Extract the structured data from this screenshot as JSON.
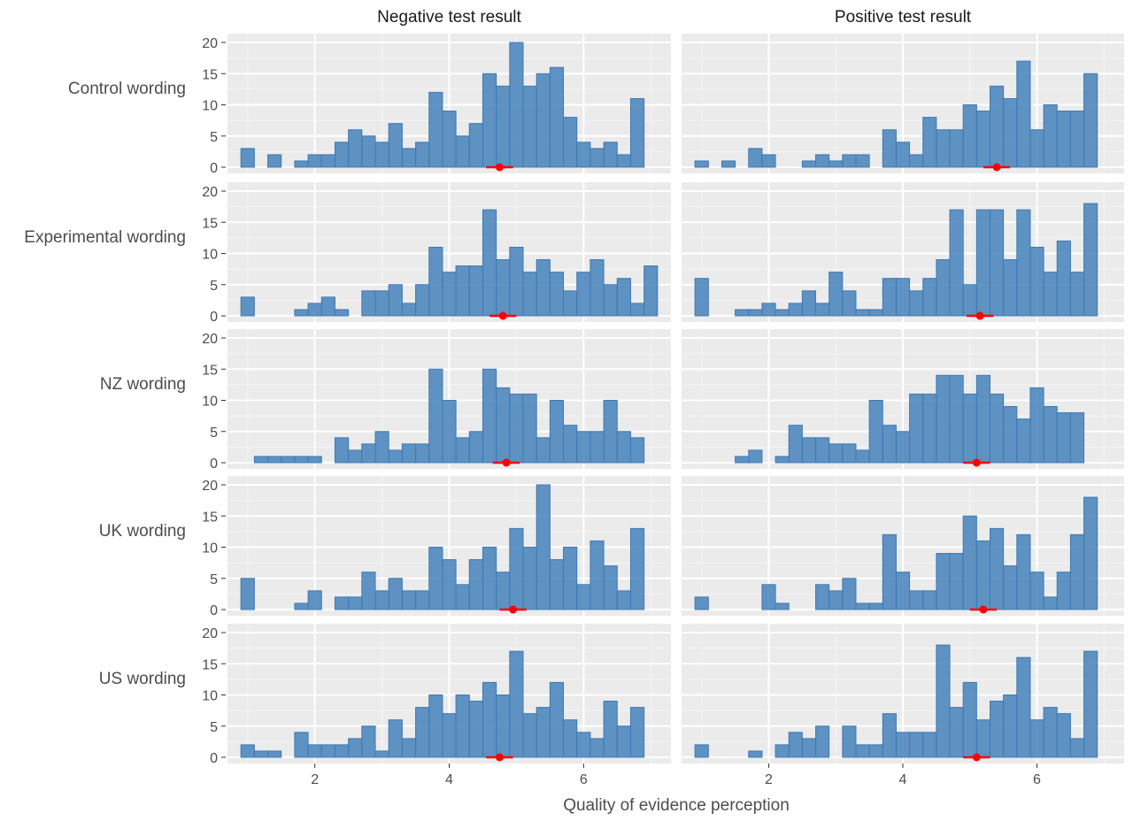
{
  "chart_data": {
    "type": "bar",
    "subtype": "faceted histogram",
    "xlabel": "Quality of evidence perception",
    "ylabel": "",
    "x_ticks": [
      2,
      4,
      6
    ],
    "y_ticks": [
      0,
      5,
      10,
      15,
      20
    ],
    "xlim": [
      0.7,
      7.3
    ],
    "ylim": [
      0,
      20.8
    ],
    "bin_start": 1.0,
    "bin_width": 0.2,
    "bar_color": "#4F88BE",
    "marker_color": "#FF0000",
    "columns": [
      "Negative test result",
      "Positive test result"
    ],
    "rows": [
      "Control wording",
      "Experimental wording",
      "NZ wording",
      "UK wording",
      "US wording"
    ],
    "panels": [
      {
        "row": "Control wording",
        "column": "Negative test result",
        "counts": [
          3,
          0,
          2,
          0,
          1,
          2,
          2,
          4,
          6,
          5,
          4,
          7,
          3,
          4,
          12,
          9,
          5,
          7,
          15,
          13,
          20,
          13,
          15,
          16,
          8,
          4,
          3,
          4,
          2,
          11
        ],
        "mean": 4.75,
        "ci": [
          4.55,
          4.95
        ]
      },
      {
        "row": "Control wording",
        "column": "Positive test result",
        "counts": [
          1,
          0,
          1,
          0,
          3,
          2,
          0,
          0,
          1,
          2,
          1,
          2,
          2,
          0,
          6,
          4,
          2,
          8,
          6,
          6,
          10,
          9,
          13,
          11,
          17,
          6,
          10,
          9,
          9,
          15
        ],
        "mean": 5.4,
        "ci": [
          5.2,
          5.6
        ]
      },
      {
        "row": "Experimental wording",
        "column": "Negative test result",
        "counts": [
          3,
          0,
          0,
          0,
          1,
          2,
          3,
          1,
          0,
          4,
          4,
          5,
          2,
          5,
          11,
          7,
          8,
          8,
          17,
          9,
          11,
          7,
          9,
          7,
          4,
          7,
          9,
          5,
          6,
          2,
          8
        ],
        "mean": 4.8,
        "ci": [
          4.6,
          5.0
        ]
      },
      {
        "row": "Experimental wording",
        "column": "Positive test result",
        "counts": [
          6,
          0,
          0,
          1,
          1,
          2,
          1,
          2,
          4,
          2,
          7,
          4,
          1,
          1,
          6,
          6,
          4,
          6,
          9,
          17,
          5,
          17,
          17,
          9,
          17,
          11,
          7,
          12,
          7,
          18
        ],
        "mean": 5.15,
        "ci": [
          4.95,
          5.35
        ]
      },
      {
        "row": "NZ wording",
        "column": "Negative test result",
        "counts": [
          0,
          1,
          1,
          1,
          1,
          1,
          0,
          4,
          2,
          3,
          5,
          2,
          3,
          3,
          15,
          10,
          4,
          5,
          15,
          12,
          11,
          11,
          4,
          10,
          6,
          5,
          5,
          10,
          5,
          4
        ],
        "mean": 4.85,
        "ci": [
          4.65,
          5.05
        ]
      },
      {
        "row": "NZ wording",
        "column": "Positive test result",
        "counts": [
          0,
          0,
          0,
          1,
          2,
          0,
          1,
          6,
          4,
          4,
          3,
          3,
          2,
          10,
          6,
          5,
          11,
          11,
          14,
          14,
          11,
          14,
          11,
          9,
          7,
          12,
          9,
          8,
          8
        ],
        "mean": 5.1,
        "ci": [
          4.9,
          5.3
        ]
      },
      {
        "row": "UK wording",
        "column": "Negative test result",
        "counts": [
          5,
          0,
          0,
          0,
          1,
          3,
          0,
          2,
          2,
          6,
          3,
          5,
          3,
          3,
          10,
          8,
          4,
          8,
          10,
          6,
          13,
          10,
          20,
          8,
          10,
          4,
          11,
          7,
          3,
          13
        ],
        "mean": 4.95,
        "ci": [
          4.75,
          5.15
        ]
      },
      {
        "row": "UK wording",
        "column": "Positive test result",
        "counts": [
          2,
          0,
          0,
          0,
          0,
          4,
          1,
          0,
          0,
          4,
          3,
          5,
          1,
          1,
          12,
          6,
          3,
          3,
          9,
          9,
          15,
          11,
          13,
          7,
          12,
          6,
          2,
          6,
          12,
          18
        ],
        "mean": 5.2,
        "ci": [
          5.0,
          5.4
        ]
      },
      {
        "row": "US wording",
        "column": "Negative test result",
        "counts": [
          2,
          1,
          1,
          0,
          4,
          2,
          2,
          2,
          3,
          5,
          1,
          6,
          3,
          8,
          10,
          7,
          10,
          9,
          12,
          10,
          17,
          7,
          8,
          12,
          6,
          4,
          3,
          9,
          5,
          8
        ],
        "mean": 4.75,
        "ci": [
          4.55,
          4.95
        ]
      },
      {
        "row": "US wording",
        "column": "Positive test result",
        "counts": [
          2,
          0,
          0,
          0,
          1,
          0,
          2,
          4,
          3,
          5,
          0,
          5,
          2,
          2,
          7,
          4,
          4,
          4,
          18,
          8,
          12,
          6,
          9,
          10,
          16,
          6,
          8,
          7,
          3,
          17
        ],
        "mean": 5.1,
        "ci": [
          4.9,
          5.3
        ]
      }
    ]
  }
}
